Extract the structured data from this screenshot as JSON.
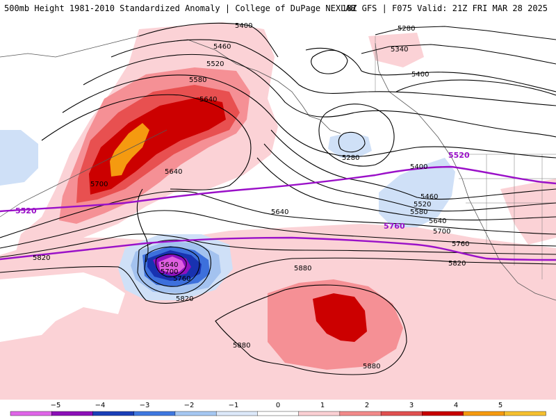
{
  "header": {
    "title_left": "500mb Height 1981-2010 Standardized Anomaly | College of DuPage NEXLAB",
    "title_right": "18Z GFS | F075 Valid: 21Z FRI MAR 28 2025"
  },
  "contours": {
    "black": [
      "5280",
      "5340",
      "5400",
      "5460",
      "5520",
      "5580",
      "5640",
      "5700",
      "5760",
      "5820",
      "5880"
    ],
    "purple": [
      "5520",
      "5760"
    ]
  },
  "labels": {
    "l5400a": "5400",
    "l5280a": "5280",
    "l5340": "5340",
    "l5400b": "5400",
    "l5460a": "5460",
    "l5520a": "5520",
    "l5580a": "5580",
    "l5640a": "5640",
    "l5700a": "5700",
    "l5640b": "5640",
    "l5640c": "5640",
    "l5280b": "5280",
    "l5400c": "5400",
    "l5460b": "5460",
    "l5520b": "5520",
    "l5580b": "5580",
    "l5640d": "5640",
    "l5700b": "5700",
    "l5760a": "5760",
    "l5820a": "5820",
    "l5820b": "5820",
    "l5640e": "5640",
    "l5700c": "5700",
    "l5760b": "5760",
    "l5820c": "5820",
    "l5880a": "5880",
    "l5880b": "5880",
    "l5880c": "5880",
    "p5520a": "5520",
    "p5520b": "5520",
    "p5760": "5760"
  },
  "legend": {
    "ticks": [
      "−5",
      "−4",
      "−3",
      "−2",
      "−1",
      "0",
      "1",
      "2",
      "3",
      "4",
      "5"
    ],
    "colors": [
      "#e066e8",
      "#8c10b8",
      "#1a3fb8",
      "#3f78e0",
      "#a6c8f2",
      "#dde9fa",
      "#ffffff",
      "#fbd0d4",
      "#f28a8a",
      "#e05050",
      "#c80000",
      "#f59a10",
      "#f5c030"
    ]
  },
  "colors": {
    "neg1": "#cfe0f7",
    "neg2": "#a3c2ef",
    "neg3": "#3d70dc",
    "neg4": "#1832b0",
    "neg5": "#9010c0",
    "neg6": "#e060e0",
    "pos1": "#fbd2d6",
    "pos2": "#f59095",
    "pos3": "#e85050",
    "pos4": "#cc0000",
    "pos5": "#f59a10",
    "contour": "#000000",
    "purple": "#9a10c8"
  }
}
